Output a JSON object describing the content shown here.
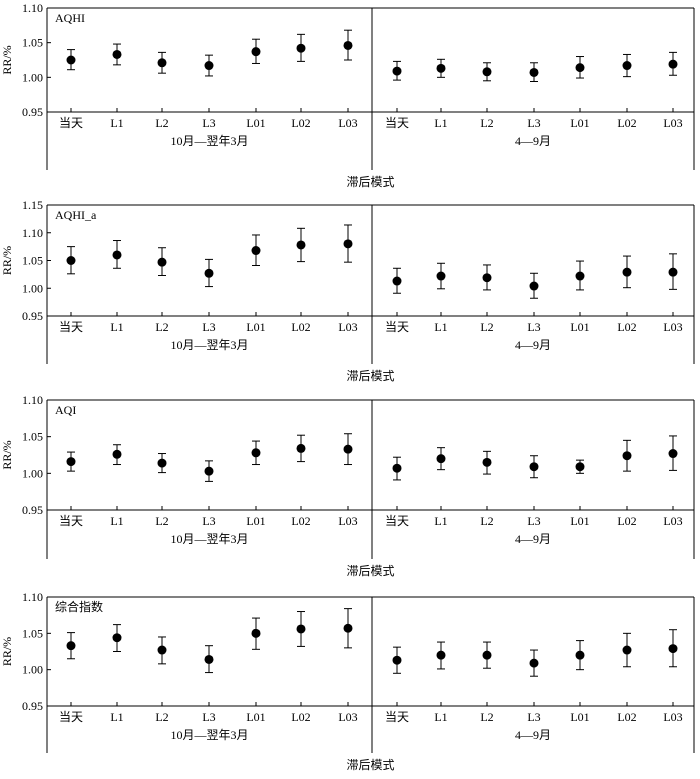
{
  "chart_data": [
    {
      "type": "scatter",
      "title": "AQHI",
      "ylabel": "RR/%",
      "xlabel": "滞后模式",
      "ylim": [
        0.95,
        1.1
      ],
      "yticks": [
        "0.95",
        "1.00",
        "1.05",
        "1.10"
      ],
      "groups": [
        {
          "label": "10月—翌年3月",
          "categories": [
            "当天",
            "L1",
            "L2",
            "L3",
            "L01",
            "L02",
            "L03"
          ],
          "values": [
            1.025,
            1.033,
            1.021,
            1.017,
            1.037,
            1.042,
            1.046
          ],
          "lower": [
            1.011,
            1.018,
            1.006,
            1.002,
            1.02,
            1.023,
            1.025
          ],
          "upper": [
            1.04,
            1.048,
            1.036,
            1.032,
            1.055,
            1.062,
            1.068
          ]
        },
        {
          "label": "4—9月",
          "categories": [
            "当天",
            "L1",
            "L2",
            "L3",
            "L01",
            "L02",
            "L03"
          ],
          "values": [
            1.009,
            1.013,
            1.008,
            1.007,
            1.014,
            1.017,
            1.019
          ],
          "lower": [
            0.996,
            1.0,
            0.995,
            0.994,
            0.999,
            1.001,
            1.003
          ],
          "upper": [
            1.023,
            1.026,
            1.021,
            1.021,
            1.03,
            1.033,
            1.036
          ]
        }
      ]
    },
    {
      "type": "scatter",
      "title": "AQHI_a",
      "ylabel": "RR/%",
      "xlabel": "滞后模式",
      "ylim": [
        0.95,
        1.15
      ],
      "yticks": [
        "0.95",
        "1.00",
        "1.05",
        "1.10",
        "1.15"
      ],
      "groups": [
        {
          "label": "10月—翌年3月",
          "categories": [
            "当天",
            "L1",
            "L2",
            "L3",
            "L01",
            "L02",
            "L03"
          ],
          "values": [
            1.05,
            1.06,
            1.047,
            1.027,
            1.068,
            1.078,
            1.08
          ],
          "lower": [
            1.026,
            1.036,
            1.023,
            1.003,
            1.041,
            1.048,
            1.047
          ],
          "upper": [
            1.075,
            1.086,
            1.073,
            1.052,
            1.096,
            1.108,
            1.114
          ]
        },
        {
          "label": "4—9月",
          "categories": [
            "当天",
            "L1",
            "L2",
            "L3",
            "L01",
            "L02",
            "L03"
          ],
          "values": [
            1.013,
            1.022,
            1.019,
            1.004,
            1.022,
            1.029,
            1.029
          ],
          "lower": [
            0.991,
            0.999,
            0.997,
            0.982,
            0.997,
            1.001,
            0.998
          ],
          "upper": [
            1.036,
            1.045,
            1.042,
            1.027,
            1.049,
            1.058,
            1.062
          ]
        }
      ]
    },
    {
      "type": "scatter",
      "title": "AQI",
      "ylabel": "RR/%",
      "xlabel": "滞后模式",
      "ylim": [
        0.95,
        1.1
      ],
      "yticks": [
        "0.95",
        "1.00",
        "1.05",
        "1.10"
      ],
      "groups": [
        {
          "label": "10月—翌年3月",
          "categories": [
            "当天",
            "L1",
            "L2",
            "L3",
            "L01",
            "L02",
            "L03"
          ],
          "values": [
            1.016,
            1.026,
            1.014,
            1.003,
            1.028,
            1.034,
            1.033
          ],
          "lower": [
            1.003,
            1.012,
            1.001,
            0.989,
            1.012,
            1.016,
            1.012
          ],
          "upper": [
            1.029,
            1.039,
            1.027,
            1.017,
            1.044,
            1.052,
            1.054
          ]
        },
        {
          "label": "4—9月",
          "categories": [
            "当天",
            "L1",
            "L2",
            "L3",
            "L01",
            "L02",
            "L03"
          ],
          "values": [
            1.007,
            1.02,
            1.015,
            1.009,
            1.009,
            1.024,
            1.027
          ],
          "lower": [
            0.991,
            1.005,
            0.999,
            0.994,
            1.0,
            1.003,
            1.004
          ],
          "upper": [
            1.022,
            1.035,
            1.03,
            1.024,
            1.018,
            1.045,
            1.051
          ]
        }
      ]
    },
    {
      "type": "scatter",
      "title": "综合指数",
      "ylabel": "RR/%",
      "xlabel": "滞后模式",
      "ylim": [
        0.95,
        1.1
      ],
      "yticks": [
        "0.95",
        "1.00",
        "1.05",
        "1.10"
      ],
      "groups": [
        {
          "label": "10月—翌年3月",
          "categories": [
            "当天",
            "L1",
            "L2",
            "L3",
            "L01",
            "L02",
            "L03"
          ],
          "values": [
            1.033,
            1.044,
            1.027,
            1.014,
            1.05,
            1.056,
            1.057
          ],
          "lower": [
            1.015,
            1.025,
            1.008,
            0.996,
            1.028,
            1.032,
            1.03
          ],
          "upper": [
            1.051,
            1.062,
            1.045,
            1.033,
            1.071,
            1.08,
            1.084
          ]
        },
        {
          "label": "4—9月",
          "categories": [
            "当天",
            "L1",
            "L2",
            "L3",
            "L01",
            "L02",
            "L03"
          ],
          "values": [
            1.013,
            1.02,
            1.02,
            1.009,
            1.02,
            1.027,
            1.029
          ],
          "lower": [
            0.995,
            1.001,
            1.002,
            0.991,
            1.0,
            1.004,
            1.004
          ],
          "upper": [
            1.031,
            1.038,
            1.038,
            1.027,
            1.04,
            1.05,
            1.055
          ]
        }
      ]
    }
  ]
}
